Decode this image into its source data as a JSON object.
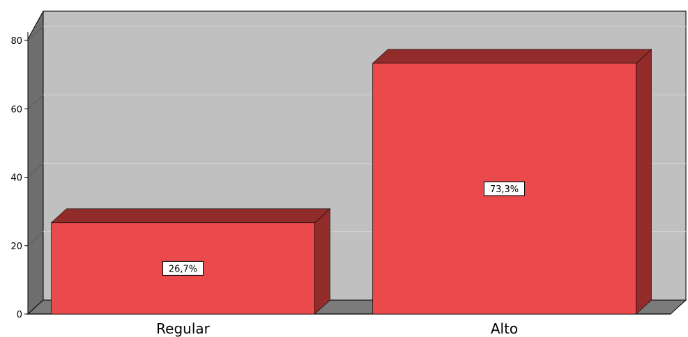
{
  "chart_data": {
    "type": "bar",
    "categories": [
      "Regular",
      "Alto"
    ],
    "values": [
      26.7,
      73.3
    ],
    "data_labels": [
      "26,7%",
      "73,3%"
    ],
    "ylim": [
      0,
      80
    ],
    "yticks": [
      "0",
      "20",
      "40",
      "60",
      "80"
    ],
    "grid": true,
    "three_d": true,
    "colors": {
      "bar_front": "#ea4a4b",
      "bar_top": "#922c2b",
      "bar_side": "#922c2b",
      "plot_back": "#c0c0c0",
      "plot_wall": "#6e6e6e",
      "plot_floor": "#7b7b7b",
      "grid": "#d4d4d4"
    }
  }
}
